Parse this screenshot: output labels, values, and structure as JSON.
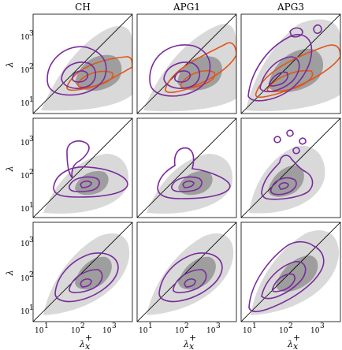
{
  "figure": {
    "columns": [
      "CH",
      "APG1",
      "APG3"
    ],
    "xlabel": "λ",
    "xlabel_sup": "+",
    "xlabel_sub": "x",
    "ylabel": "λ",
    "ylabel_sup": "+",
    "ylabel_sub": "z",
    "ticks_top_rows": [
      "10",
      "10",
      "10"
    ],
    "tick_exponents_top_rows": [
      "3",
      "2",
      "1"
    ],
    "ticks_bottom_row": [
      "10",
      "10"
    ],
    "tick_exponents_bottom_row": [
      "3",
      "2"
    ],
    "xticks": [
      "10",
      "10",
      "10"
    ],
    "xtick_exponents": [
      "1",
      "2",
      "3"
    ]
  },
  "colors": {
    "purple": "#7a2b9c",
    "orange": "#e0561b",
    "light_gray": "#d9d9d9",
    "dark_gray": "#9e9e9e",
    "diagonal": "#000000"
  },
  "chart_data": [
    {
      "type": "contour",
      "row": 1,
      "column": "CH",
      "xscale": "log",
      "yscale": "log",
      "xlim": [
        5,
        5000
      ],
      "ylim": [
        5,
        5000
      ],
      "diagonal": true,
      "series": [
        "gray filled",
        "purple contours",
        "orange contours"
      ]
    },
    {
      "type": "contour",
      "row": 1,
      "column": "APG1",
      "xscale": "log",
      "yscale": "log",
      "xlim": [
        5,
        5000
      ],
      "ylim": [
        5,
        5000
      ],
      "diagonal": true,
      "series": [
        "gray filled",
        "purple contours",
        "orange contours"
      ]
    },
    {
      "type": "contour",
      "row": 1,
      "column": "APG3",
      "xscale": "log",
      "yscale": "log",
      "xlim": [
        5,
        5000
      ],
      "ylim": [
        5,
        5000
      ],
      "diagonal": true,
      "series": [
        "gray filled",
        "purple contours",
        "orange contours"
      ]
    },
    {
      "type": "contour",
      "row": 2,
      "column": "CH",
      "xscale": "log",
      "yscale": "log",
      "xlim": [
        5,
        5000
      ],
      "ylim": [
        5,
        5000
      ],
      "diagonal": true,
      "series": [
        "gray filled",
        "purple contours"
      ]
    },
    {
      "type": "contour",
      "row": 2,
      "column": "APG1",
      "xscale": "log",
      "yscale": "log",
      "xlim": [
        5,
        5000
      ],
      "ylim": [
        5,
        5000
      ],
      "diagonal": true,
      "series": [
        "gray filled",
        "purple contours"
      ]
    },
    {
      "type": "contour",
      "row": 2,
      "column": "APG3",
      "xscale": "log",
      "yscale": "log",
      "xlim": [
        5,
        5000
      ],
      "ylim": [
        5,
        5000
      ],
      "diagonal": true,
      "series": [
        "gray filled",
        "purple contours"
      ]
    },
    {
      "type": "contour",
      "row": 3,
      "column": "CH",
      "xscale": "log",
      "yscale": "log",
      "xlim": [
        5,
        5000
      ],
      "ylim": [
        5,
        5000
      ],
      "diagonal": true,
      "series": [
        "gray filled",
        "purple contours"
      ]
    },
    {
      "type": "contour",
      "row": 3,
      "column": "APG1",
      "xscale": "log",
      "yscale": "log",
      "xlim": [
        5,
        5000
      ],
      "ylim": [
        5,
        5000
      ],
      "diagonal": true,
      "series": [
        "gray filled",
        "purple contours"
      ]
    },
    {
      "type": "contour",
      "row": 3,
      "column": "APG3",
      "xscale": "log",
      "yscale": "log",
      "xlim": [
        5,
        5000
      ],
      "ylim": [
        5,
        5000
      ],
      "diagonal": true,
      "series": [
        "gray filled",
        "purple contours"
      ]
    }
  ]
}
